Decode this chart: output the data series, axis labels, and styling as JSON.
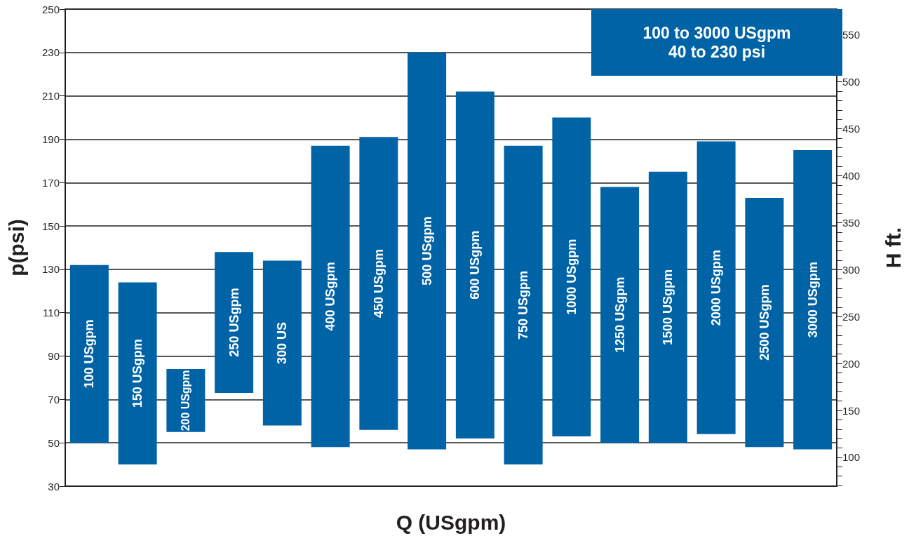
{
  "chart_data": {
    "type": "bar",
    "xlabel": "Q (USgpm)",
    "ylabel": "p(psi)",
    "y2label": "H ft.",
    "categories": [
      "100 USgpm",
      "150 USgpm",
      "200 USgpm",
      "250 USgpm",
      "300 US",
      "400 USgpm",
      "450 USgpm",
      "500 USgpm",
      "600 USgpm",
      "750 USgpm",
      "1000 USgpm",
      "1250 USgpm",
      "1500 USgpm",
      "2000 USgpm",
      "2500 USgpm",
      "3000 USgpm"
    ],
    "base": [
      50,
      40,
      55,
      73,
      58,
      48,
      56,
      47,
      52,
      40,
      53,
      50,
      50,
      54,
      48,
      47
    ],
    "values": [
      82,
      84,
      29,
      65,
      76,
      139,
      135,
      183,
      160,
      147,
      147,
      118,
      125,
      135,
      115,
      138
    ],
    "color": "#0063a6",
    "ylim": [
      30,
      250
    ],
    "yticks": [
      30,
      50,
      70,
      90,
      110,
      130,
      150,
      170,
      190,
      210,
      230,
      250
    ],
    "y2lim": [
      69.3,
      577.5
    ],
    "y2ticks": [
      {
        "value": 70,
        "label": null
      },
      {
        "value": 80,
        "label": null
      },
      {
        "value": 90,
        "label": null
      },
      100,
      {
        "value": 110,
        "label": null
      },
      {
        "value": 120,
        "label": null
      },
      {
        "value": 130,
        "label": null
      },
      {
        "value": 140,
        "label": null
      },
      150,
      {
        "value": 160,
        "label": null
      },
      {
        "value": 170,
        "label": null
      },
      {
        "value": 180,
        "label": null
      },
      {
        "value": 190,
        "label": null
      },
      200,
      {
        "value": 210,
        "label": null
      },
      {
        "value": 220,
        "label": null
      },
      {
        "value": 230,
        "label": null
      },
      {
        "value": 240,
        "label": null
      },
      250,
      {
        "value": 260,
        "label": null
      },
      {
        "value": 270,
        "label": null
      },
      {
        "value": 280,
        "label": null
      },
      {
        "value": 290,
        "label": null
      },
      300,
      {
        "value": 310,
        "label": null
      },
      {
        "value": 320,
        "label": null
      },
      {
        "value": 330,
        "label": null
      },
      {
        "value": 340,
        "label": null
      },
      350,
      {
        "value": 360,
        "label": null
      },
      {
        "value": 370,
        "label": null
      },
      {
        "value": 380,
        "label": null
      },
      {
        "value": 390,
        "label": null
      },
      400,
      {
        "value": 410,
        "label": null
      },
      {
        "value": 420,
        "label": null
      },
      {
        "value": 430,
        "label": null
      },
      {
        "value": 440,
        "label": null
      },
      450,
      {
        "value": 460,
        "label": null
      },
      {
        "value": 470,
        "label": null
      },
      {
        "value": 480,
        "label": null
      },
      {
        "value": 490,
        "label": null
      },
      500,
      {
        "value": 510,
        "label": null
      },
      {
        "value": 520,
        "label": null
      },
      {
        "value": 530,
        "label": null
      },
      {
        "value": 540,
        "label": null
      },
      550,
      {
        "value": 560,
        "label": null
      },
      {
        "value": 570,
        "label": null
      }
    ],
    "grid": "y",
    "annotations": [
      "100 to 3000 USgpm\n40 to 230 psi"
    ]
  }
}
